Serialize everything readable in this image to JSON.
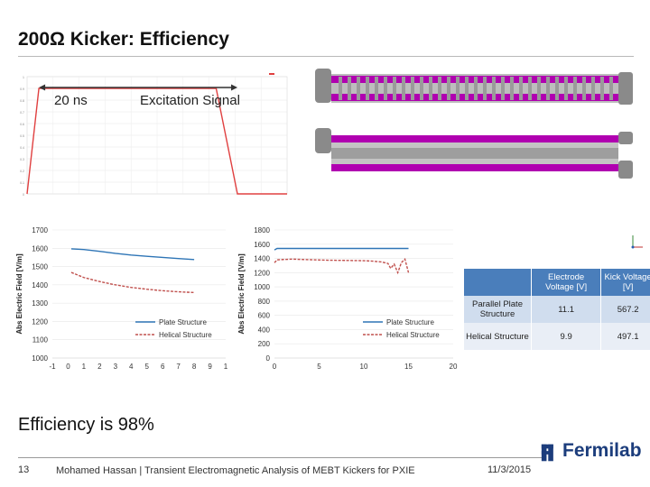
{
  "slide": {
    "title": "200Ω Kicker: Efficiency",
    "annotation_20ns": "20 ns",
    "annotation_excitation": "Excitation Signal",
    "efficiency_text": "Efficiency is 98%",
    "footer": {
      "page_number": "13",
      "author": "Mohamed Hassan | Transient Electromagnetic Analysis of MEBT Kickers for PXIE",
      "date": "11/3/2015",
      "logo_text": "Fermilab"
    },
    "colors": {
      "plate": "#2e75b6",
      "helical": "#c0504d",
      "magenta": "#b000b0",
      "fermilab_blue": "#1c3d7c"
    }
  },
  "table": {
    "headers": [
      "",
      "Electrode Voltage [V]",
      "Kick Voltage [V]"
    ],
    "rows": [
      {
        "label": "Parallel Plate Structure",
        "electrode": "11.1",
        "kick": "567.2"
      },
      {
        "label": "Helical Structure",
        "electrode": "9.9",
        "kick": "497.1"
      }
    ]
  },
  "chart_data": [
    {
      "type": "line",
      "title": "",
      "xlabel": "",
      "ylabel": "",
      "x": [
        0,
        0.5,
        1.6,
        8.0,
        8.9,
        11.0
      ],
      "series": [
        {
          "name": "",
          "values": [
            0,
            0.9,
            0.9,
            0.9,
            0,
            0
          ]
        }
      ],
      "ylim": [
        0,
        1.0
      ],
      "yticks": [
        "0",
        "0.1",
        "0.2",
        "0.3",
        "0.4",
        "0.5",
        "0.6",
        "0.7",
        "0.8",
        "0.9",
        "1"
      ],
      "grid": true
    },
    {
      "type": "line",
      "title": "",
      "xlabel": "Distance from Electrode [mm]",
      "ylabel": "Abs Electric Field [V/m]",
      "xlim": [
        -1,
        10
      ],
      "ylim": [
        1000,
        1700
      ],
      "xticks": [
        "-1",
        "0",
        "1",
        "2",
        "3",
        "4",
        "5",
        "6",
        "7",
        "8",
        "9",
        "1"
      ],
      "yticks": [
        "1000",
        "1100",
        "1200",
        "1300",
        "1400",
        "1500",
        "1600",
        "1700"
      ],
      "legend": "bottom-right",
      "series": [
        {
          "name": "Plate Structure",
          "x": [
            0.2,
            1,
            2,
            3,
            4,
            5,
            6,
            7,
            8
          ],
          "values": [
            1597,
            1593,
            1583,
            1572,
            1563,
            1556,
            1550,
            1544,
            1538
          ]
        },
        {
          "name": "Helical Structure",
          "x": [
            0.2,
            1,
            2,
            3,
            4,
            5,
            6,
            7,
            8
          ],
          "values": [
            1468,
            1440,
            1418,
            1400,
            1386,
            1376,
            1368,
            1362,
            1358
          ]
        }
      ]
    },
    {
      "type": "line",
      "title": "",
      "xlabel": "Longitudinal Position [in]",
      "ylabel": "Abs Electric Field [V/m]",
      "xlim": [
        0,
        20
      ],
      "ylim": [
        0,
        1800
      ],
      "xticks": [
        "0",
        "5",
        "10",
        "15",
        "20"
      ],
      "yticks": [
        "0",
        "200",
        "400",
        "600",
        "800",
        "1000",
        "1200",
        "1400",
        "1600",
        "1800"
      ],
      "legend": "bottom-right",
      "series": [
        {
          "name": "Plate Structure",
          "x": [
            0,
            0.3,
            1,
            5,
            10,
            14,
            15
          ],
          "values": [
            1520,
            1540,
            1540,
            1540,
            1540,
            1540,
            1540
          ]
        },
        {
          "name": "Helical Structure",
          "x": [
            0,
            0.3,
            1,
            2,
            4,
            6,
            8,
            10,
            11,
            12,
            12.7,
            13,
            13.4,
            13.8,
            14.2,
            14.6,
            15
          ],
          "values": [
            1340,
            1380,
            1385,
            1390,
            1382,
            1375,
            1372,
            1368,
            1362,
            1350,
            1330,
            1260,
            1320,
            1200,
            1340,
            1390,
            1200
          ]
        }
      ]
    }
  ]
}
